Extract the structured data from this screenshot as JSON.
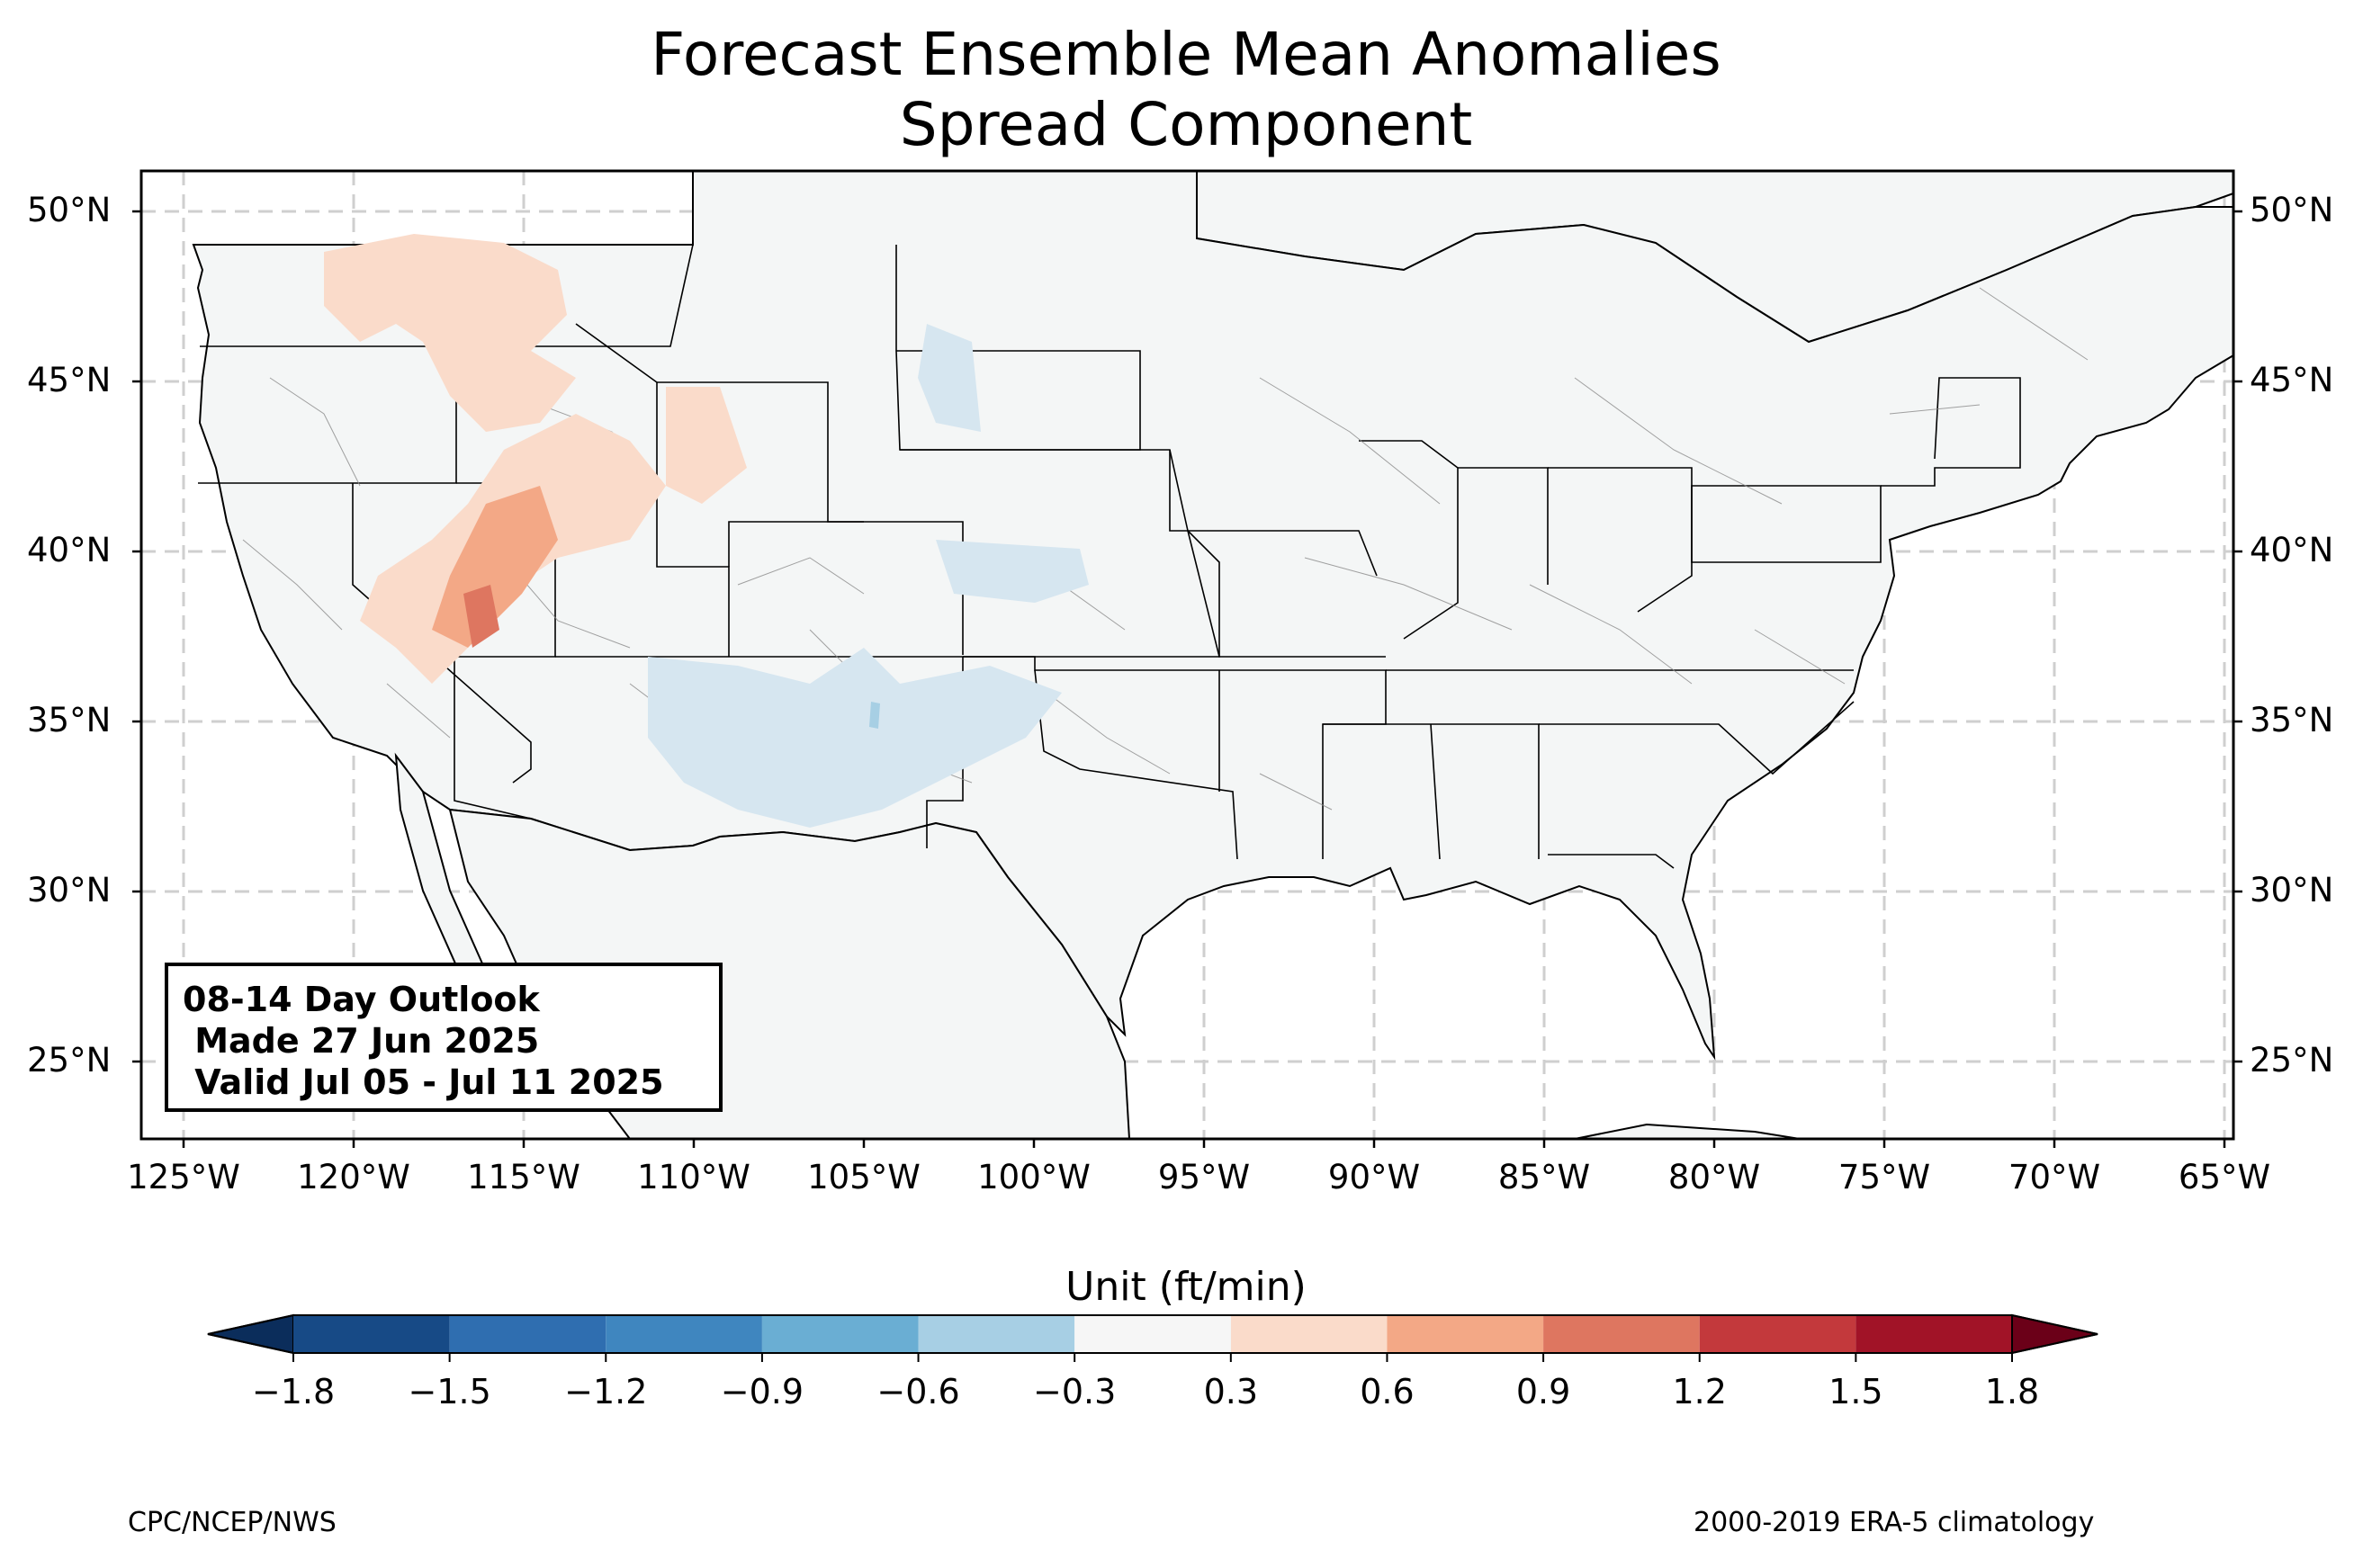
{
  "title": [
    "Forecast Ensemble Mean Anomalies",
    "Spread Component"
  ],
  "lat_labels": [
    "50°N",
    "45°N",
    "40°N",
    "35°N",
    "30°N",
    "25°N"
  ],
  "lon_labels": [
    "125°W",
    "120°W",
    "115°W",
    "110°W",
    "105°W",
    "100°W",
    "95°W",
    "90°W",
    "85°W",
    "80°W",
    "75°W",
    "70°W",
    "65°W"
  ],
  "info_box": [
    "08-14 Day Outlook",
    " Made 27 Jun 2025",
    " Valid Jul 05 - Jul 11 2025"
  ],
  "colorbar": {
    "title": "Unit (ft/min)",
    "ticks": [
      "−1.8",
      "−1.5",
      "−1.2",
      "−0.9",
      "−0.6",
      "−0.3",
      "0.3",
      "0.6",
      "0.9",
      "1.2",
      "1.5",
      "1.8"
    ],
    "colors": [
      "#174a86",
      "#2f6eb0",
      "#3f86bf",
      "#6aaed3",
      "#a7cfe4",
      "#d6e6f0",
      "#f6f6f6",
      "#fadbca",
      "#f3a886",
      "#de7660",
      "#c3393c",
      "#a11327"
    ],
    "under_color": "#0b2d5b",
    "over_color": "#6b0018"
  },
  "footer": {
    "left": "CPC/NCEP/NWS",
    "right": "2000-2019 ERA-5 climatology"
  }
}
